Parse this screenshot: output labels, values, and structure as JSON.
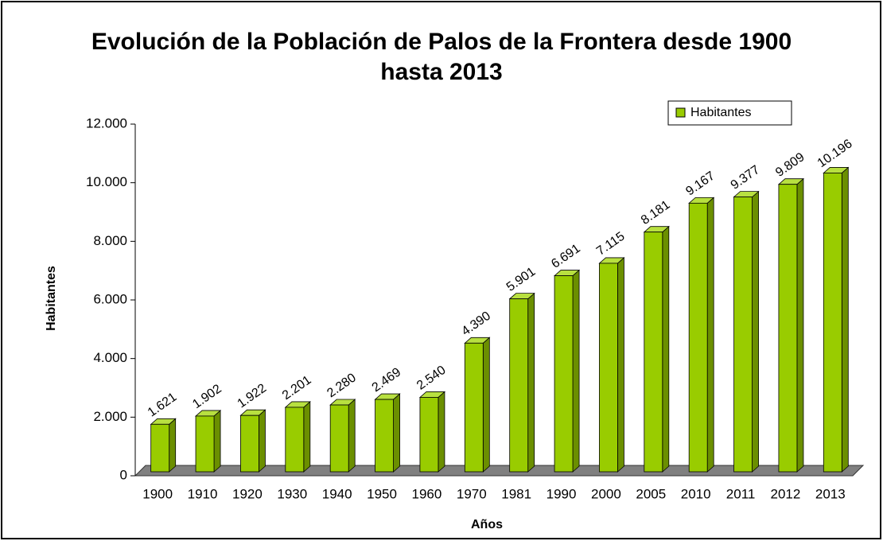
{
  "chart_data": {
    "type": "bar3d",
    "title": "Evolución de la Población de Palos de la Frontera desde 1900 hasta 2013",
    "x_label": "Años",
    "y_label": "Habitantes",
    "categories": [
      "1900",
      "1910",
      "1920",
      "1930",
      "1940",
      "1950",
      "1960",
      "1970",
      "1981",
      "1990",
      "2000",
      "2005",
      "2010",
      "2011",
      "2012",
      "2013"
    ],
    "series": [
      {
        "name": "Habitantes",
        "color": "#99cc00",
        "values": [
          1621,
          1902,
          1922,
          2201,
          2280,
          2469,
          2540,
          4390,
          5901,
          6691,
          7115,
          8181,
          9167,
          9377,
          9809,
          10196
        ],
        "value_labels": [
          "1.621",
          "1.902",
          "1.922",
          "2.201",
          "2.280",
          "2.469",
          "2.540",
          "4.390",
          "5.901",
          "6.691",
          "7.115",
          "8.181",
          "9.167",
          "9.377",
          "9.809",
          "10.196"
        ]
      }
    ],
    "ylim": [
      0,
      12000
    ],
    "yticks": [
      0,
      {
        "value": 2000,
        "label": "2.000"
      },
      {
        "value": 4000,
        "label": "4.000"
      },
      {
        "value": 6000,
        "label": "6.000"
      },
      {
        "value": 8000,
        "label": "8.000"
      },
      {
        "value": 10000,
        "label": "10.000"
      },
      {
        "value": 12000,
        "label": "12.000"
      }
    ],
    "legend": "top-right"
  }
}
